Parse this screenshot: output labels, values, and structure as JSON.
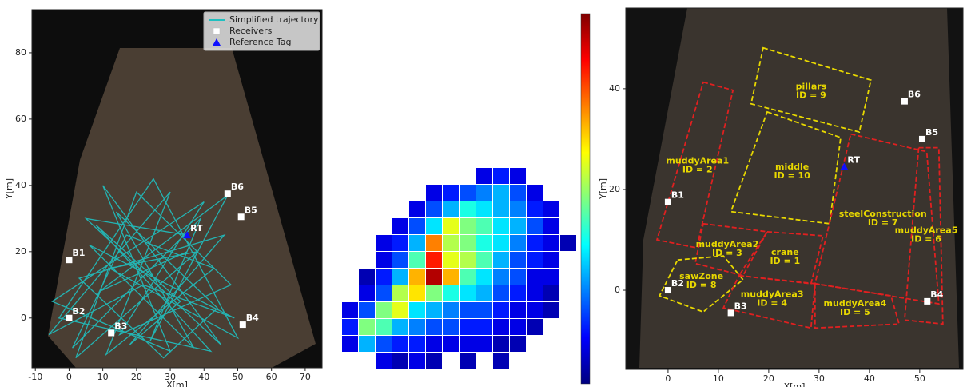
{
  "chart_data": [
    {
      "type": "line",
      "xlabel": "X[m]",
      "ylabel": "Y[m]",
      "xlim": [
        -11,
        75
      ],
      "xticks": [
        -10,
        0,
        10,
        20,
        30,
        40,
        50,
        60,
        70
      ],
      "ylim": [
        -15,
        93
      ],
      "yticks": [
        0,
        20,
        40,
        60,
        80
      ],
      "legend": "upper right",
      "series": [
        {
          "name": "Simplified trajectory",
          "color": "#20c0c0",
          "marker": "line",
          "x": [
            35,
            5,
            45,
            10,
            30,
            -5,
            40,
            15,
            48,
            20,
            2,
            38,
            12,
            50,
            25,
            -3,
            42,
            8,
            33,
            18,
            46,
            3,
            28,
            44,
            14,
            37,
            6,
            49,
            22,
            -6,
            30,
            11,
            43,
            17,
            1,
            39,
            24,
            47,
            9,
            35
          ],
          "values": [
            25,
            30,
            -8,
            40,
            -10,
            5,
            35,
            -5,
            10,
            38,
            -12,
            20,
            15,
            -6,
            42,
            0,
            -10,
            28,
            5,
            -8,
            25,
            12,
            -12,
            3,
            32,
            -9,
            22,
            0,
            10,
            -5,
            38,
            -11,
            15,
            25,
            -9,
            30,
            -7,
            37,
            8,
            20
          ]
        },
        {
          "name": "Receivers",
          "color": "#ffffff",
          "marker": "square",
          "point_labels": [
            "B1",
            "B2",
            "B3",
            "B4",
            "B5",
            "B6"
          ],
          "x": [
            0,
            0,
            12.5,
            51.5,
            51,
            47
          ],
          "values": [
            17.5,
            0,
            -4.5,
            -2,
            30.5,
            37.5
          ]
        },
        {
          "name": "Reference Tag",
          "color": "#1010ff",
          "marker": "triangle",
          "point_labels": [
            "RT"
          ],
          "x": [
            35
          ],
          "values": [
            25
          ]
        }
      ]
    },
    {
      "type": "heatmap",
      "colormap": "jet",
      "zlim": [
        0,
        1
      ],
      "values": [
        [
          null,
          null,
          null,
          null,
          null,
          null,
          null,
          null,
          0.1,
          0.15,
          0.1,
          null,
          null,
          null
        ],
        [
          null,
          null,
          null,
          null,
          null,
          0.1,
          0.15,
          0.2,
          0.25,
          0.3,
          0.2,
          0.1,
          null,
          null
        ],
        [
          null,
          null,
          null,
          null,
          0.1,
          0.2,
          0.3,
          0.4,
          0.35,
          0.3,
          0.25,
          0.15,
          0.1,
          null
        ],
        [
          null,
          null,
          null,
          0.1,
          0.2,
          0.35,
          0.6,
          0.5,
          0.45,
          0.35,
          0.3,
          0.2,
          0.1,
          null
        ],
        [
          null,
          null,
          0.1,
          0.15,
          0.3,
          0.75,
          0.55,
          0.5,
          0.4,
          0.35,
          0.25,
          0.15,
          0.1,
          0.05
        ],
        [
          null,
          null,
          0.1,
          0.2,
          0.45,
          0.85,
          0.6,
          0.55,
          0.45,
          0.3,
          0.2,
          0.15,
          0.1,
          null
        ],
        [
          null,
          0.05,
          0.15,
          0.3,
          0.7,
          0.95,
          0.7,
          0.45,
          0.35,
          0.25,
          0.2,
          0.1,
          0.1,
          null
        ],
        [
          null,
          0.1,
          0.2,
          0.55,
          0.65,
          0.5,
          0.4,
          0.35,
          0.3,
          0.2,
          0.15,
          0.1,
          0.05,
          null
        ],
        [
          0.1,
          0.2,
          0.5,
          0.6,
          0.35,
          0.3,
          0.25,
          0.2,
          0.2,
          0.15,
          0.1,
          0.1,
          0.05,
          null
        ],
        [
          0.15,
          0.5,
          0.45,
          0.3,
          0.25,
          0.2,
          0.2,
          0.15,
          0.15,
          0.1,
          0.1,
          0.05,
          null,
          null
        ],
        [
          0.1,
          0.3,
          0.2,
          0.15,
          0.15,
          0.1,
          0.1,
          0.1,
          0.1,
          0.05,
          0.05,
          null,
          null,
          null
        ],
        [
          null,
          null,
          0.1,
          0.05,
          0.1,
          0.05,
          null,
          0.05,
          null,
          0.05,
          null,
          null,
          null,
          null
        ]
      ]
    },
    {
      "type": "scatter",
      "xlabel": "X[m]",
      "ylabel": "Y[m]",
      "xlim": [
        -8.4,
        58.6
      ],
      "xticks": [
        0,
        10,
        20,
        30,
        40,
        50
      ],
      "ylim": [
        -15.7,
        56
      ],
      "yticks": [
        0,
        20,
        40
      ],
      "series": [
        {
          "name": "Receivers",
          "color": "#ffffff",
          "marker": "square",
          "point_labels": [
            "B1",
            "B2",
            "B3",
            "B4",
            "B5",
            "B6"
          ],
          "x": [
            0,
            0,
            12.5,
            51.5,
            50.5,
            47
          ],
          "values": [
            17.5,
            0,
            -4.5,
            -2.2,
            30,
            37.5
          ]
        },
        {
          "name": "Reference Tag",
          "color": "#1010ff",
          "marker": "triangle",
          "point_labels": [
            "RT"
          ],
          "x": [
            35
          ],
          "values": [
            24.5
          ]
        }
      ],
      "zones": [
        {
          "name": "pillars",
          "id_label": "ID = 9",
          "color": "#e8d800",
          "x": [
            18.9,
            40.3,
            38.0,
            16.5
          ],
          "y": [
            48.1,
            41.7,
            31.4,
            37.0
          ]
        },
        {
          "name": "muddyArea1",
          "id_label": "ID = 2",
          "color": "#e02020",
          "x": [
            7.0,
            12.9,
            5.7,
            -2.2
          ],
          "y": [
            41.3,
            39.7,
            8.4,
            10.0
          ]
        },
        {
          "name": "middle",
          "id_label": "ID = 10",
          "color": "#e8d800",
          "x": [
            19.7,
            34.3,
            32.1,
            12.5
          ],
          "y": [
            35.4,
            30.3,
            13.2,
            15.6
          ]
        },
        {
          "name": "steelConstruction",
          "id_label": "ID = 7",
          "color": "#e02020",
          "x": [
            36.3,
            51.4,
            53.8,
            29.2
          ],
          "y": [
            31.0,
            27.5,
            -2.7,
            1.3
          ]
        },
        {
          "name": "muddyArea2",
          "id_label": "ID = 3",
          "color": "#e02020",
          "x": [
            7.0,
            19.7,
            14.9,
            5.4
          ],
          "y": [
            13.2,
            11.6,
            2.9,
            5.3
          ]
        },
        {
          "name": "crane",
          "id_label": "ID = 1",
          "color": "#e02020",
          "x": [
            19.7,
            30.8,
            28.4,
            14.1
          ],
          "y": [
            11.6,
            10.8,
            1.3,
            2.9
          ]
        },
        {
          "name": "sawZone",
          "id_label": "ID = 8",
          "color": "#e8d800",
          "x": [
            1.9,
            11.0,
            14.9,
            7.0,
            -1.7
          ],
          "y": [
            6.0,
            6.8,
            2.1,
            -4.3,
            -1.1
          ]
        },
        {
          "name": "muddyArea3",
          "id_label": "ID = 4",
          "color": "#e02020",
          "x": [
            14.1,
            29.2,
            28.4,
            11.0
          ],
          "y": [
            2.9,
            1.3,
            -7.5,
            -3.5
          ]
        },
        {
          "name": "muddyArea4",
          "id_label": "ID = 5",
          "color": "#e02020",
          "x": [
            29.2,
            44.3,
            45.9,
            29.2
          ],
          "y": [
            1.3,
            -1.1,
            -6.7,
            -7.5
          ]
        },
        {
          "name": "muddyArea5",
          "id_label": "ID = 6",
          "color": "#e02020",
          "x": [
            49.8,
            53.8,
            54.6,
            47.0
          ],
          "y": [
            28.3,
            28.3,
            -6.7,
            -5.9
          ]
        }
      ]
    }
  ]
}
